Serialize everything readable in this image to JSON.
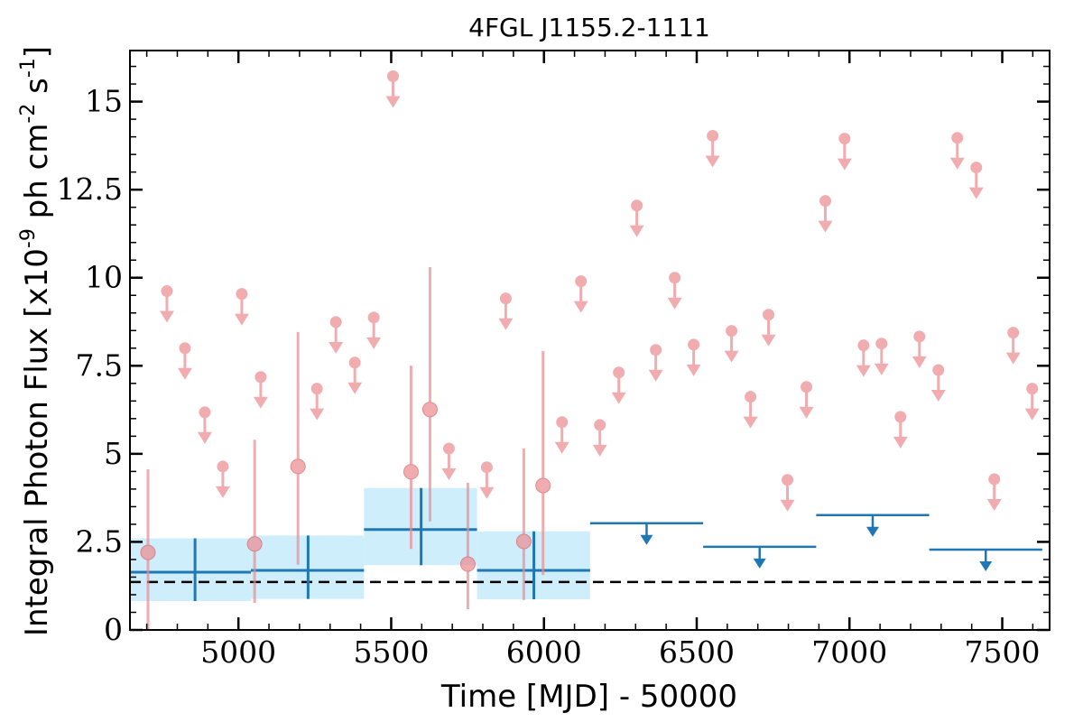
{
  "chart_data": {
    "type": "scatter",
    "title": "4FGL J1155.2-1111",
    "xlabel": "Time [MJD] - 50000",
    "ylabel": "Integral Photon Flux [x10",
    "ylabel_exp": "-9",
    "ylabel_units": " ph cm",
    "ylabel_cm_exp": "-2",
    "ylabel_s": " s",
    "ylabel_s_exp": "-1",
    "ylabel_close": "]",
    "xlim": [
      4645,
      7655
    ],
    "ylim": [
      0,
      16.45
    ],
    "xticks": [
      5000,
      5500,
      6000,
      6500,
      7000,
      7500
    ],
    "xtick_labels": [
      "5000",
      "5500",
      "6000",
      "6500",
      "7000",
      "7500"
    ],
    "yticks": [
      0,
      2.5,
      5,
      7.5,
      10,
      12.5,
      15
    ],
    "ytick_labels": [
      "0",
      "2.5",
      "5",
      "7.5",
      "10",
      "12.5",
      "15"
    ],
    "grid": false,
    "colors": {
      "short_bins": "#ec8a8f",
      "long_bins": "#1f77b4",
      "long_band": "#cfeefc",
      "baseline": "#000000"
    },
    "short_bin_detections": [
      {
        "x": 4704,
        "y": 2.2,
        "ylo": 0.0,
        "yhi": 4.56
      },
      {
        "x": 5053,
        "y": 2.44,
        "ylo": 0.77,
        "yhi": 5.4
      },
      {
        "x": 5195,
        "y": 4.64,
        "ylo": 1.85,
        "yhi": 8.46
      },
      {
        "x": 5565,
        "y": 4.49,
        "ylo": 2.3,
        "yhi": 7.5
      },
      {
        "x": 5627,
        "y": 6.26,
        "ylo": 3.08,
        "yhi": 10.3
      },
      {
        "x": 5751,
        "y": 1.87,
        "ylo": 0.59,
        "yhi": 4.18
      },
      {
        "x": 5934,
        "y": 2.51,
        "ylo": 0.85,
        "yhi": 5.15
      },
      {
        "x": 5997,
        "y": 4.1,
        "ylo": 1.56,
        "yhi": 7.92
      }
    ],
    "short_bin_upper_limits": [
      {
        "x": 4766,
        "y": 9.62
      },
      {
        "x": 4825,
        "y": 8.0
      },
      {
        "x": 4890,
        "y": 6.18
      },
      {
        "x": 4949,
        "y": 4.64
      },
      {
        "x": 5011,
        "y": 9.54
      },
      {
        "x": 5073,
        "y": 7.18
      },
      {
        "x": 5257,
        "y": 6.85
      },
      {
        "x": 5319,
        "y": 8.74
      },
      {
        "x": 5381,
        "y": 7.59
      },
      {
        "x": 5443,
        "y": 8.87
      },
      {
        "x": 5506,
        "y": 15.72
      },
      {
        "x": 5689,
        "y": 5.15
      },
      {
        "x": 5813,
        "y": 4.62
      },
      {
        "x": 5875,
        "y": 9.41
      },
      {
        "x": 6059,
        "y": 5.9
      },
      {
        "x": 6121,
        "y": 9.9
      },
      {
        "x": 6183,
        "y": 5.82
      },
      {
        "x": 6245,
        "y": 7.31
      },
      {
        "x": 6304,
        "y": 12.05
      },
      {
        "x": 6366,
        "y": 7.95
      },
      {
        "x": 6428,
        "y": 10.0
      },
      {
        "x": 6490,
        "y": 8.1
      },
      {
        "x": 6552,
        "y": 14.03
      },
      {
        "x": 6614,
        "y": 8.49
      },
      {
        "x": 6676,
        "y": 6.62
      },
      {
        "x": 6735,
        "y": 8.95
      },
      {
        "x": 6797,
        "y": 4.26
      },
      {
        "x": 6859,
        "y": 6.9
      },
      {
        "x": 6921,
        "y": 12.18
      },
      {
        "x": 6984,
        "y": 13.95
      },
      {
        "x": 7046,
        "y": 8.08
      },
      {
        "x": 7105,
        "y": 8.13
      },
      {
        "x": 7167,
        "y": 6.05
      },
      {
        "x": 7229,
        "y": 8.33
      },
      {
        "x": 7291,
        "y": 7.38
      },
      {
        "x": 7353,
        "y": 13.97
      },
      {
        "x": 7415,
        "y": 13.13
      },
      {
        "x": 7474,
        "y": 4.28
      },
      {
        "x": 7536,
        "y": 8.44
      },
      {
        "x": 7598,
        "y": 6.85
      }
    ],
    "long_bin_detections": [
      {
        "xmin": 4645,
        "xmax": 5041,
        "x": 4858,
        "y": 1.64,
        "ylo": 0.82,
        "yhi": 2.6
      },
      {
        "xmin": 5041,
        "xmax": 5411,
        "x": 5228,
        "y": 1.69,
        "ylo": 0.88,
        "yhi": 2.68
      },
      {
        "xmin": 5411,
        "xmax": 5781,
        "x": 5598,
        "y": 2.85,
        "ylo": 1.84,
        "yhi": 4.03
      },
      {
        "xmin": 5781,
        "xmax": 6151,
        "x": 5967,
        "y": 1.69,
        "ylo": 0.87,
        "yhi": 2.8
      }
    ],
    "long_bin_upper_limits": [
      {
        "xmin": 6151,
        "xmax": 6521,
        "x": 6336,
        "y": 3.03
      },
      {
        "xmin": 6521,
        "xmax": 6891,
        "x": 6706,
        "y": 2.36
      },
      {
        "xmin": 6891,
        "xmax": 7261,
        "x": 7076,
        "y": 3.26
      },
      {
        "xmin": 7261,
        "xmax": 7631,
        "x": 7446,
        "y": 2.28
      }
    ],
    "baseline_flux": 1.36
  }
}
